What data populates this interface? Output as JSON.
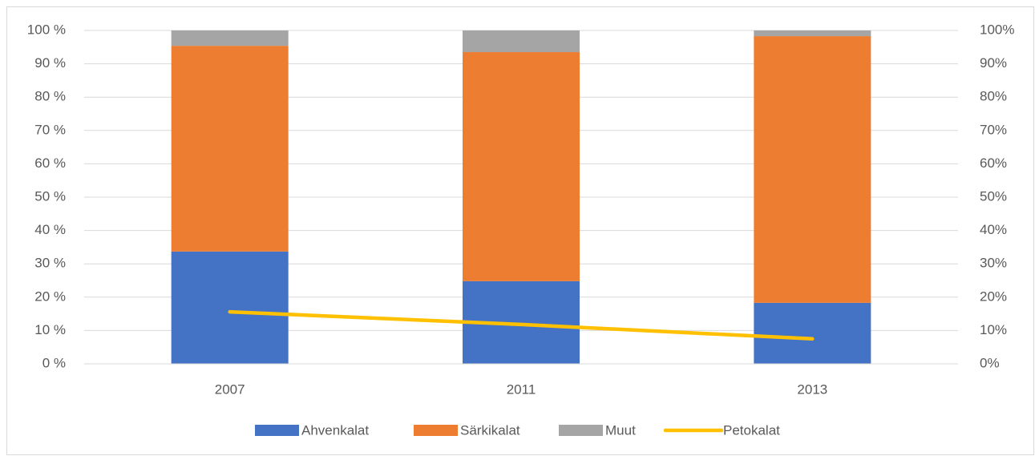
{
  "chart_data": {
    "type": "bar",
    "stacked": true,
    "categories": [
      "2007",
      "2011",
      "2013"
    ],
    "series": [
      {
        "name": "Ahvenkalat",
        "color": "#4472c4",
        "values": [
          33.7,
          24.8,
          18.3
        ]
      },
      {
        "name": "Särkikalat",
        "color": "#ed7d31",
        "values": [
          61.7,
          68.7,
          80.0
        ]
      },
      {
        "name": "Muut",
        "color": "#a5a5a5",
        "values": [
          4.6,
          6.5,
          1.7
        ]
      },
      {
        "name": "Petokalat",
        "color": "#ffc000",
        "type": "line",
        "axis": "y2",
        "values": [
          15.6,
          11.8,
          7.5
        ]
      }
    ],
    "ylim": [
      0,
      100
    ],
    "yticks": [
      {
        "value": 0,
        "label": "0 %"
      },
      {
        "value": 10,
        "label": "10 %"
      },
      {
        "value": 20,
        "label": "20 %"
      },
      {
        "value": 30,
        "label": "30 %"
      },
      {
        "value": 40,
        "label": "40 %"
      },
      {
        "value": 50,
        "label": "50 %"
      },
      {
        "value": 60,
        "label": "60 %"
      },
      {
        "value": 70,
        "label": "70 %"
      },
      {
        "value": 80,
        "label": "80 %"
      },
      {
        "value": 90,
        "label": "90 %"
      },
      {
        "value": 100,
        "label": "100 %"
      }
    ],
    "y2lim": [
      0,
      100
    ],
    "y2ticks": [
      {
        "value": 0,
        "label": "0%"
      },
      {
        "value": 10,
        "label": "10%"
      },
      {
        "value": 20,
        "label": "20%"
      },
      {
        "value": 30,
        "label": "30%"
      },
      {
        "value": 40,
        "label": "40%"
      },
      {
        "value": 50,
        "label": "50%"
      },
      {
        "value": 60,
        "label": "60%"
      },
      {
        "value": 70,
        "label": "70%"
      },
      {
        "value": 80,
        "label": "80%"
      },
      {
        "value": 90,
        "label": "90%"
      },
      {
        "value": 100,
        "label": "100%"
      }
    ],
    "grid": true,
    "legend": "bottom"
  }
}
